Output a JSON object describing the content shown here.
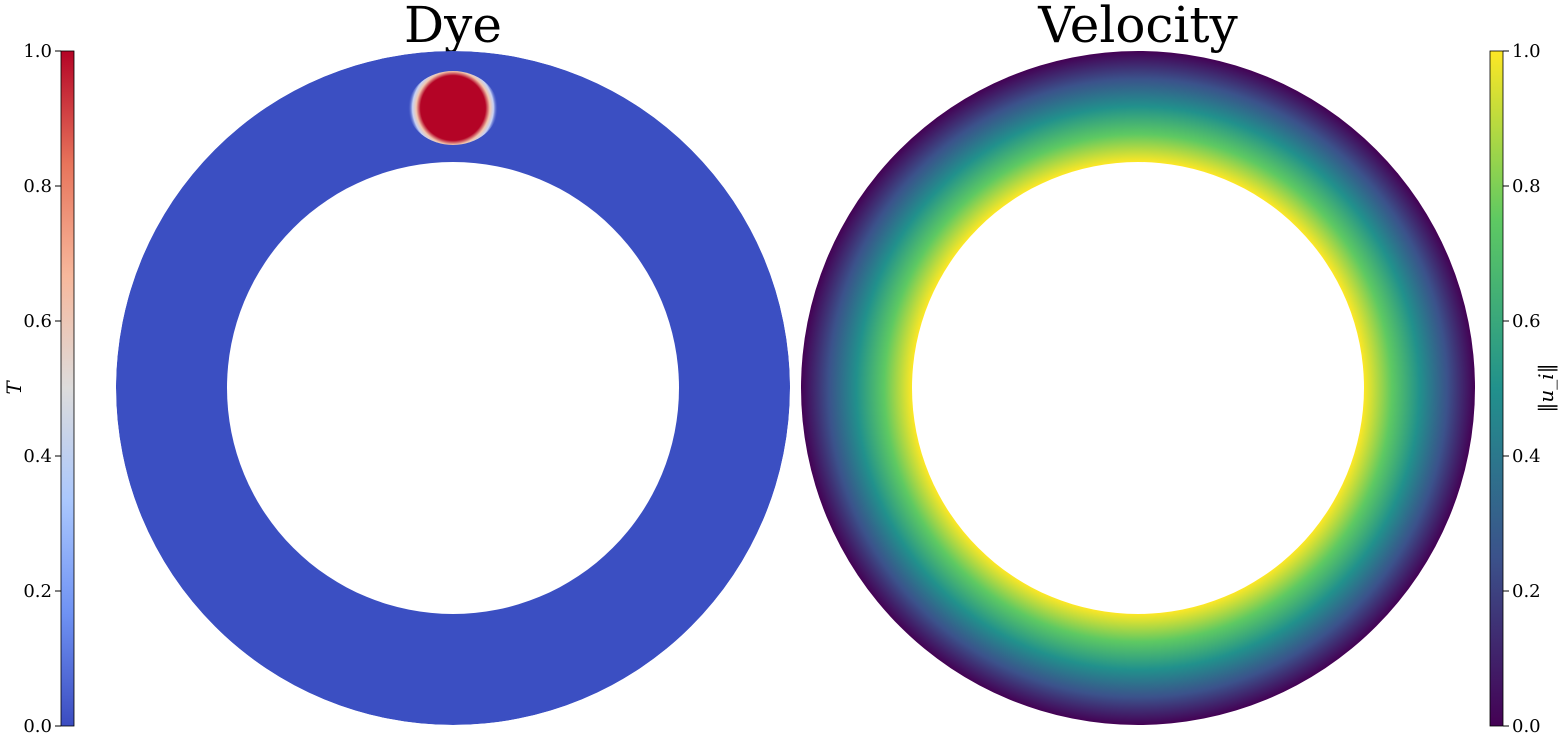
{
  "chart_data": [
    {
      "type": "heatmap",
      "title": "Dye",
      "domain": "annulus",
      "colormap": "coolwarm",
      "background_value": 0.0,
      "blob": {
        "position": "top",
        "value": 1.0
      },
      "colorbar": {
        "side": "left",
        "label": "T",
        "range": [
          0.0,
          1.0
        ],
        "ticks": [
          "0.0",
          "0.2",
          "0.4",
          "0.6",
          "0.8",
          "1.0"
        ]
      }
    },
    {
      "type": "heatmap",
      "title": "Velocity",
      "domain": "annulus",
      "colormap": "viridis",
      "inner_value": 1.0,
      "outer_value": 0.0,
      "colorbar": {
        "side": "right",
        "label": "‖u_i‖",
        "range": [
          0.0,
          1.0
        ],
        "ticks": [
          "0.0",
          "0.2",
          "0.4",
          "0.6",
          "0.8",
          "1.0"
        ]
      }
    }
  ],
  "colors": {
    "coolwarm": [
      "#3b4cc0",
      "#6f92f3",
      "#aac7fd",
      "#dddcdc",
      "#f7b89c",
      "#e7745b",
      "#b40426"
    ],
    "viridis": [
      "#440154",
      "#3b528b",
      "#21918c",
      "#5ec962",
      "#fde725"
    ],
    "dye_base": "#3b4fc2",
    "dye_blob": "#b40426"
  }
}
